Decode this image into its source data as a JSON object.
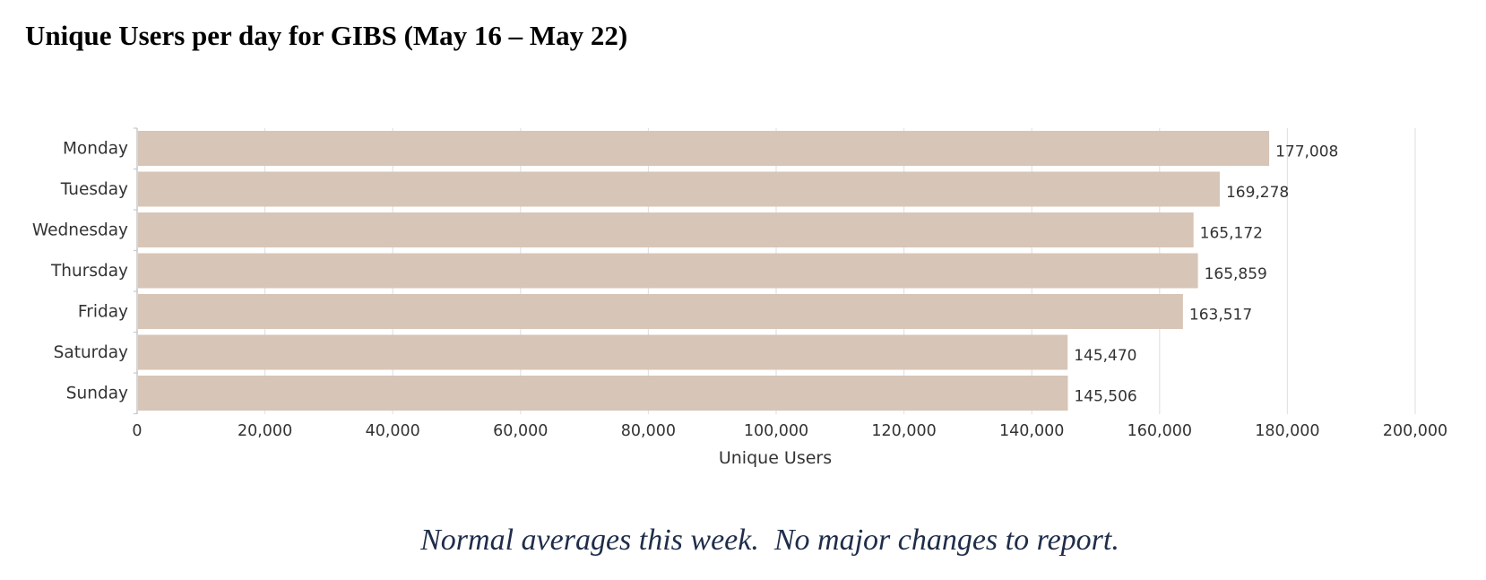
{
  "page": {
    "title": "Unique Users per day for GIBS (May 16 – May 22)",
    "note": "Normal averages this week.  No major changes to report."
  },
  "chart_data": {
    "type": "bar",
    "orientation": "horizontal",
    "categories": [
      "Monday",
      "Tuesday",
      "Wednesday",
      "Thursday",
      "Friday",
      "Saturday",
      "Sunday"
    ],
    "values": [
      177008,
      169278,
      165172,
      165859,
      163517,
      145470,
      145506
    ],
    "value_labels": [
      "177,008",
      "169,278",
      "165,172",
      "165,859",
      "163,517",
      "145,470",
      "145,506"
    ],
    "xlabel": "Unique Users",
    "ylabel": "",
    "xlim": [
      0,
      200000
    ],
    "xticks": [
      0,
      20000,
      40000,
      60000,
      80000,
      100000,
      120000,
      140000,
      160000,
      180000,
      200000
    ],
    "xtick_labels": [
      "0",
      "20,000",
      "40,000",
      "60,000",
      "80,000",
      "100,000",
      "120,000",
      "140,000",
      "160,000",
      "180,000",
      "200,000"
    ],
    "grid": "vertical",
    "legend": "none",
    "bar_color": "#d7c5b7"
  }
}
